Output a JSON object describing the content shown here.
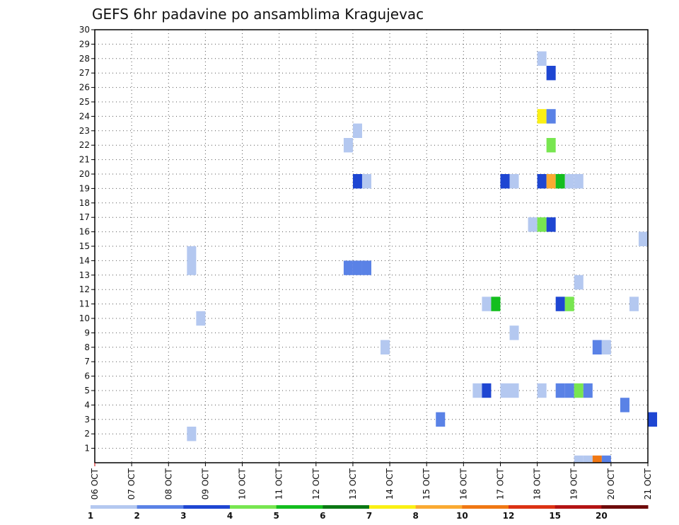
{
  "chart_data": {
    "type": "heatmap",
    "title": "GEFS 6hr padavine po ansamblima Kragujevac",
    "x_tick_labels": [
      "06 OCT",
      "07 OCT",
      "08 OCT",
      "09 OCT",
      "10 OCT",
      "11 OCT",
      "12 OCT",
      "13 OCT",
      "14 OCT",
      "15 OCT",
      "16 OCT",
      "17 OCT",
      "18 OCT",
      "19 OCT",
      "20 OCT",
      "21 OCT"
    ],
    "x_range_days": [
      0,
      15
    ],
    "y_tick_labels": [
      "1",
      "2",
      "3",
      "4",
      "5",
      "6",
      "7",
      "8",
      "9",
      "10",
      "11",
      "12",
      "13",
      "14",
      "15",
      "16",
      "17",
      "18",
      "19",
      "20",
      "21",
      "22",
      "23",
      "24",
      "25",
      "26",
      "27",
      "28",
      "29",
      "30"
    ],
    "y_range": [
      0,
      30
    ],
    "grid": true,
    "legend": {
      "position": "bottom",
      "labels": [
        "1",
        "2",
        "3",
        "4",
        "5",
        "6",
        "7",
        "8",
        "10",
        "12",
        "15",
        "20"
      ],
      "colors": [
        "#b4c8f0",
        "#5a82e6",
        "#1e46d2",
        "#78e650",
        "#14be1e",
        "#0a7814",
        "#faf014",
        "#faaa32",
        "#f07814",
        "#dc3214",
        "#b41414",
        "#6e0a0a"
      ]
    },
    "cells": [
      {
        "day": 12.0,
        "y0": 27.5,
        "y1": 28.5,
        "color": "#b4c8f0"
      },
      {
        "day": 12.25,
        "y0": 26.5,
        "y1": 27.5,
        "color": "#1e46d2"
      },
      {
        "day": 12.0,
        "y0": 23.5,
        "y1": 24.5,
        "color": "#faf014"
      },
      {
        "day": 12.25,
        "y0": 23.5,
        "y1": 24.5,
        "color": "#5a82e6"
      },
      {
        "day": 7.0,
        "y0": 22.5,
        "y1": 23.5,
        "color": "#b4c8f0"
      },
      {
        "day": 6.75,
        "y0": 21.5,
        "y1": 22.5,
        "color": "#b4c8f0"
      },
      {
        "day": 12.25,
        "y0": 21.5,
        "y1": 22.5,
        "color": "#78e650"
      },
      {
        "day": 7.0,
        "y0": 19.0,
        "y1": 20.0,
        "color": "#1e46d2"
      },
      {
        "day": 7.25,
        "y0": 19.0,
        "y1": 20.0,
        "color": "#b4c8f0"
      },
      {
        "day": 11.0,
        "y0": 19.0,
        "y1": 20.0,
        "color": "#1e46d2"
      },
      {
        "day": 11.25,
        "y0": 19.0,
        "y1": 20.0,
        "color": "#b4c8f0"
      },
      {
        "day": 12.0,
        "y0": 19.0,
        "y1": 20.0,
        "color": "#1e46d2"
      },
      {
        "day": 12.25,
        "y0": 19.0,
        "y1": 20.0,
        "color": "#faaa32"
      },
      {
        "day": 12.5,
        "y0": 19.0,
        "y1": 20.0,
        "color": "#14be1e"
      },
      {
        "day": 12.75,
        "y0": 19.0,
        "y1": 20.0,
        "color": "#b4c8f0"
      },
      {
        "day": 13.0,
        "y0": 19.0,
        "y1": 20.0,
        "color": "#b4c8f0"
      },
      {
        "day": 11.75,
        "y0": 16.0,
        "y1": 17.0,
        "color": "#b4c8f0"
      },
      {
        "day": 12.0,
        "y0": 16.0,
        "y1": 17.0,
        "color": "#78e650"
      },
      {
        "day": 12.25,
        "y0": 16.0,
        "y1": 17.0,
        "color": "#1e46d2"
      },
      {
        "day": 14.75,
        "y0": 15.0,
        "y1": 16.0,
        "color": "#b4c8f0"
      },
      {
        "day": 2.5,
        "y0": 13.0,
        "y1": 15.0,
        "color": "#b4c8f0"
      },
      {
        "day": 6.75,
        "y0": 13.0,
        "y1": 14.0,
        "color": "#5a82e6"
      },
      {
        "day": 7.0,
        "y0": 13.0,
        "y1": 14.0,
        "color": "#5a82e6"
      },
      {
        "day": 7.25,
        "y0": 13.0,
        "y1": 14.0,
        "color": "#5a82e6"
      },
      {
        "day": 13.0,
        "y0": 12.0,
        "y1": 13.0,
        "color": "#b4c8f0"
      },
      {
        "day": 10.5,
        "y0": 10.5,
        "y1": 11.5,
        "color": "#b4c8f0"
      },
      {
        "day": 10.75,
        "y0": 10.5,
        "y1": 11.5,
        "color": "#14be1e"
      },
      {
        "day": 12.5,
        "y0": 10.5,
        "y1": 11.5,
        "color": "#1e46d2"
      },
      {
        "day": 12.75,
        "y0": 10.5,
        "y1": 11.5,
        "color": "#78e650"
      },
      {
        "day": 14.5,
        "y0": 10.5,
        "y1": 11.5,
        "color": "#b4c8f0"
      },
      {
        "day": 2.75,
        "y0": 9.5,
        "y1": 10.5,
        "color": "#b4c8f0"
      },
      {
        "day": 11.25,
        "y0": 8.5,
        "y1": 9.5,
        "color": "#b4c8f0"
      },
      {
        "day": 7.75,
        "y0": 7.5,
        "y1": 8.5,
        "color": "#b4c8f0"
      },
      {
        "day": 13.5,
        "y0": 7.5,
        "y1": 8.5,
        "color": "#5a82e6"
      },
      {
        "day": 13.75,
        "y0": 7.5,
        "y1": 8.5,
        "color": "#b4c8f0"
      },
      {
        "day": 10.25,
        "y0": 4.5,
        "y1": 5.5,
        "color": "#b4c8f0"
      },
      {
        "day": 10.5,
        "y0": 4.5,
        "y1": 5.5,
        "color": "#1e46d2"
      },
      {
        "day": 11.0,
        "y0": 4.5,
        "y1": 5.5,
        "color": "#b4c8f0"
      },
      {
        "day": 11.25,
        "y0": 4.5,
        "y1": 5.5,
        "color": "#b4c8f0"
      },
      {
        "day": 12.0,
        "y0": 4.5,
        "y1": 5.5,
        "color": "#b4c8f0"
      },
      {
        "day": 12.5,
        "y0": 4.5,
        "y1": 5.5,
        "color": "#5a82e6"
      },
      {
        "day": 12.75,
        "y0": 4.5,
        "y1": 5.5,
        "color": "#5a82e6"
      },
      {
        "day": 13.0,
        "y0": 4.5,
        "y1": 5.5,
        "color": "#78e650"
      },
      {
        "day": 13.25,
        "y0": 4.5,
        "y1": 5.5,
        "color": "#5a82e6"
      },
      {
        "day": 14.25,
        "y0": 3.5,
        "y1": 4.5,
        "color": "#5a82e6"
      },
      {
        "day": 9.25,
        "y0": 2.5,
        "y1": 3.5,
        "color": "#5a82e6"
      },
      {
        "day": 15.0,
        "y0": 2.5,
        "y1": 3.5,
        "color": "#1e46d2"
      },
      {
        "day": 2.5,
        "y0": 1.5,
        "y1": 2.5,
        "color": "#b4c8f0"
      },
      {
        "day": 13.0,
        "y0": 0.0,
        "y1": 0.5,
        "color": "#b4c8f0"
      },
      {
        "day": 13.25,
        "y0": 0.0,
        "y1": 0.5,
        "color": "#b4c8f0"
      },
      {
        "day": 13.5,
        "y0": 0.0,
        "y1": 0.5,
        "color": "#f07814"
      },
      {
        "day": 13.75,
        "y0": 0.0,
        "y1": 0.5,
        "color": "#5a82e6"
      }
    ]
  }
}
